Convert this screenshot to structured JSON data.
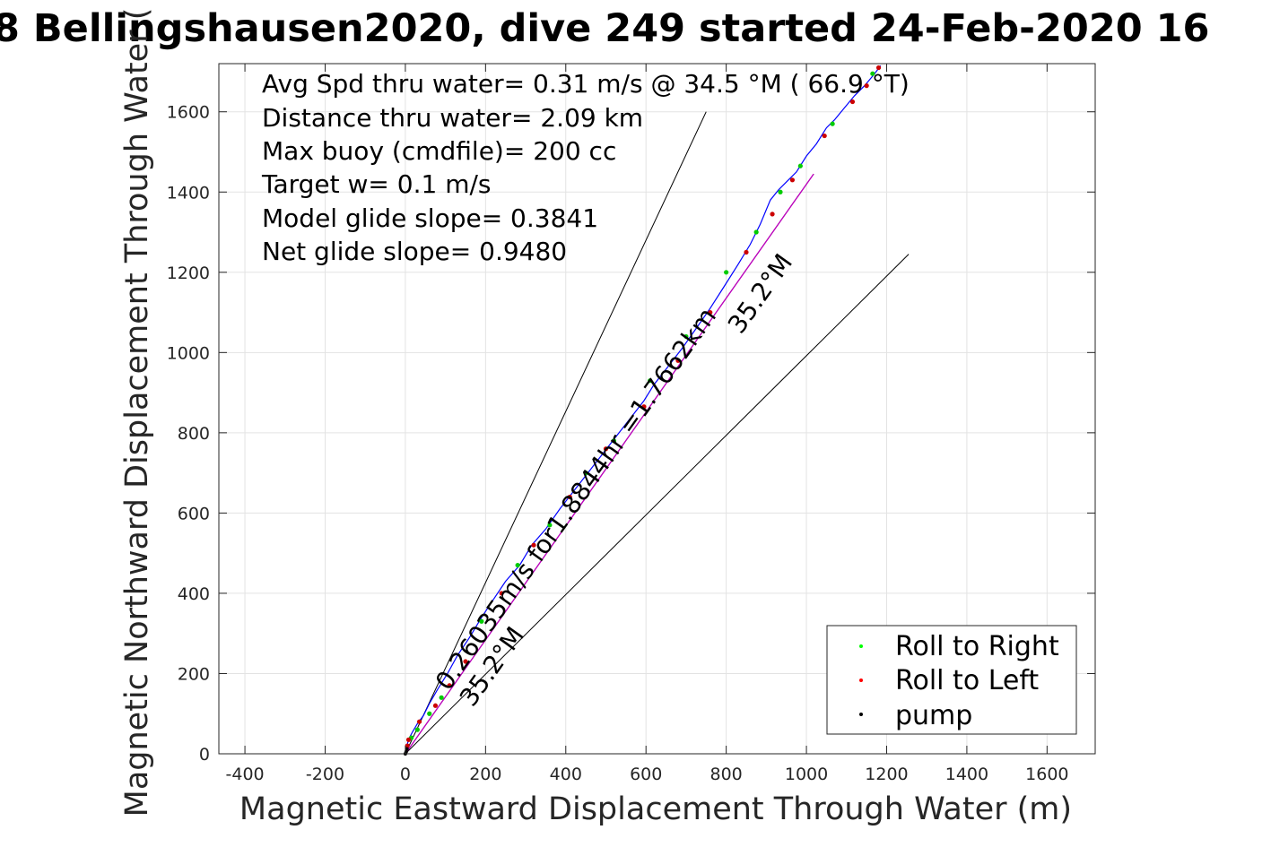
{
  "figure": {
    "title": "8 Bellingshausen2020, dive 249 started 24-Feb-2020 16"
  },
  "chart_data": {
    "type": "line",
    "title": "8 Bellingshausen2020, dive 249 started 24-Feb-2020 16",
    "xlabel": "Magnetic Eastward Displacement Through Water (m)",
    "ylabel": "Magnetic Northward Displacement Through Water (",
    "xlim": [
      -465,
      1720
    ],
    "ylim": [
      0,
      1720
    ],
    "xticks": [
      -400,
      -200,
      0,
      200,
      400,
      600,
      800,
      1000,
      1200,
      1400,
      1600
    ],
    "yticks": [
      0,
      200,
      400,
      600,
      800,
      1000,
      1200,
      1400,
      1600
    ],
    "grid": true,
    "info_text": [
      "Avg Spd thru water=  0.31 m/s @  34.5 °M ( 66.9 °T)",
      "Distance thru water=  2.09 km",
      "Max buoy (cmdfile)= 200 cc",
      "Target w= 0.1 m/s",
      "Model glide slope= 0.3841",
      "Net glide slope= 0.9480"
    ],
    "annotations": {
      "speed_label": "0.26035m/s for1.8844hr =1.7662km",
      "heading_label_upper": "35.2°M",
      "heading_label_lower": "35.2°M"
    },
    "reference_lines": [
      {
        "name": "upper-bound",
        "x": [
          0,
          750
        ],
        "y": [
          0,
          1600
        ]
      },
      {
        "name": "lower-bound",
        "x": [
          0,
          1255
        ],
        "y": [
          0,
          1245
        ]
      },
      {
        "name": "mean-heading",
        "x": [
          0,
          1018
        ],
        "y": [
          0,
          1445
        ]
      }
    ],
    "track": {
      "color": "#0000ff",
      "x": [
        0,
        5,
        10,
        18,
        30,
        45,
        60,
        80,
        105,
        130,
        160,
        190,
        220,
        250,
        285,
        315,
        350,
        385,
        420,
        455,
        490,
        525,
        560,
        595,
        620,
        655,
        690,
        725,
        760,
        795,
        830,
        860,
        885,
        910,
        930,
        950,
        975,
        1000,
        1025,
        1050,
        1070,
        1095,
        1120,
        1145,
        1170,
        1185
      ],
      "y": [
        0,
        25,
        40,
        55,
        75,
        95,
        125,
        160,
        200,
        245,
        290,
        340,
        385,
        430,
        470,
        520,
        560,
        610,
        655,
        700,
        745,
        790,
        835,
        880,
        920,
        965,
        1010,
        1060,
        1110,
        1165,
        1220,
        1270,
        1320,
        1380,
        1405,
        1425,
        1450,
        1490,
        1520,
        1560,
        1580,
        1610,
        1640,
        1665,
        1695,
        1715
      ]
    },
    "heading_line": {
      "color": "#c000c0",
      "x": [
        0,
        1018
      ],
      "y": [
        0,
        1445
      ]
    },
    "markers": {
      "roll_right": {
        "color": "#00cc00",
        "points": [
          [
            15,
            40
          ],
          [
            30,
            60
          ],
          [
            60,
            100
          ],
          [
            90,
            140
          ],
          [
            190,
            330
          ],
          [
            280,
            470
          ],
          [
            360,
            570
          ],
          [
            450,
            700
          ],
          [
            520,
            780
          ],
          [
            610,
            930
          ],
          [
            700,
            1040
          ],
          [
            800,
            1200
          ],
          [
            875,
            1300
          ],
          [
            935,
            1400
          ],
          [
            985,
            1465
          ],
          [
            1065,
            1570
          ],
          [
            1165,
            1695
          ]
        ]
      },
      "roll_left": {
        "color": "#cc0000",
        "points": [
          [
            5,
            20
          ],
          [
            8,
            35
          ],
          [
            35,
            80
          ],
          [
            75,
            120
          ],
          [
            110,
            170
          ],
          [
            150,
            230
          ],
          [
            240,
            400
          ],
          [
            320,
            520
          ],
          [
            410,
            640
          ],
          [
            500,
            760
          ],
          [
            595,
            865
          ],
          [
            680,
            980
          ],
          [
            760,
            1100
          ],
          [
            850,
            1250
          ],
          [
            915,
            1345
          ],
          [
            965,
            1430
          ],
          [
            1045,
            1540
          ],
          [
            1115,
            1625
          ],
          [
            1150,
            1665
          ],
          [
            1180,
            1710
          ]
        ]
      },
      "pump": {
        "color": "#000000",
        "points": [
          [
            0,
            0
          ],
          [
            2,
            5
          ],
          [
            4,
            12
          ]
        ]
      }
    },
    "legend": {
      "position": "bottom-right",
      "entries": [
        {
          "name": "Roll to Right",
          "color": "#00ff00"
        },
        {
          "name": "Roll to Left",
          "color": "#ff0000"
        },
        {
          "name": "pump",
          "color": "#000000"
        }
      ]
    }
  }
}
